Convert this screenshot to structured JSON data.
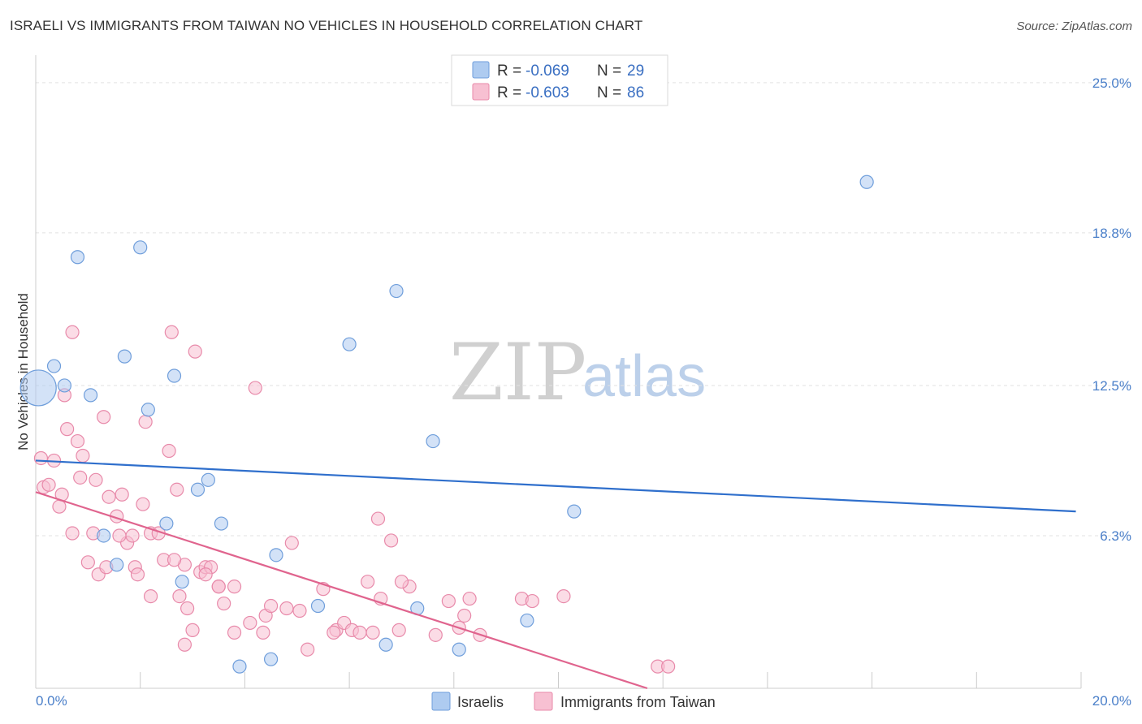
{
  "title": "ISRAELI VS IMMIGRANTS FROM TAIWAN NO VEHICLES IN HOUSEHOLD CORRELATION CHART",
  "source": "Source: ZipAtlas.com",
  "watermark": {
    "zip": "ZIP",
    "atlas": "atlas"
  },
  "legend_top": [
    {
      "r_label": "R = ",
      "r_value": "-0.069",
      "n_label": "N = ",
      "n_value": "29",
      "color": "#aecbf0",
      "stroke": "#6f9edb"
    },
    {
      "r_label": "R = ",
      "r_value": "-0.603",
      "n_label": "N = ",
      "n_value": "86",
      "color": "#f7c0d2",
      "stroke": "#e88aaa"
    }
  ],
  "chart_data": {
    "type": "scatter",
    "title": "ISRAELI VS IMMIGRANTS FROM TAIWAN NO VEHICLES IN HOUSEHOLD CORRELATION CHART",
    "xlabel": "",
    "ylabel": "No Vehicles in Household",
    "xlim": [
      0,
      20
    ],
    "ylim": [
      0,
      25.8
    ],
    "x_tick_labels": [
      "0.0%",
      "20.0%"
    ],
    "y_ticks": [
      6.3,
      12.5,
      18.8,
      25.0
    ],
    "y_tick_labels": [
      "6.3%",
      "12.5%",
      "18.8%",
      "25.0%"
    ],
    "grid": true,
    "series": [
      {
        "name": "Israelis",
        "color": "#aecbf0",
        "stroke": "#6f9edb",
        "line_color": "#2f6fcc",
        "trend": [
          [
            0,
            9.4
          ],
          [
            19.9,
            7.3
          ]
        ],
        "points": [
          [
            0.35,
            13.3
          ],
          [
            0.55,
            12.5
          ],
          [
            0.8,
            17.8
          ],
          [
            1.05,
            12.1
          ],
          [
            1.7,
            13.7
          ],
          [
            2.0,
            18.2
          ],
          [
            2.15,
            11.5
          ],
          [
            2.65,
            12.9
          ],
          [
            3.3,
            8.6
          ],
          [
            3.1,
            8.2
          ],
          [
            3.55,
            6.8
          ],
          [
            2.5,
            6.8
          ],
          [
            1.3,
            6.3
          ],
          [
            1.55,
            5.1
          ],
          [
            2.8,
            4.4
          ],
          [
            4.6,
            5.5
          ],
          [
            6.0,
            14.2
          ],
          [
            6.9,
            16.4
          ],
          [
            7.6,
            10.2
          ],
          [
            10.3,
            7.3
          ],
          [
            15.9,
            20.9
          ],
          [
            5.4,
            3.4
          ],
          [
            7.3,
            3.3
          ],
          [
            9.4,
            2.8
          ],
          [
            8.1,
            1.6
          ],
          [
            6.7,
            1.8
          ],
          [
            3.9,
            0.9
          ],
          [
            4.5,
            1.2
          ],
          [
            0.05,
            12.4
          ]
        ]
      },
      {
        "name": "Immigrants from Taiwan",
        "color": "#f7c0d2",
        "stroke": "#e88aaa",
        "line_color": "#e0648e",
        "trend": [
          [
            0,
            8.1
          ],
          [
            11.7,
            0
          ]
        ],
        "points": [
          [
            0.1,
            9.5
          ],
          [
            0.15,
            8.3
          ],
          [
            0.25,
            8.4
          ],
          [
            0.35,
            9.4
          ],
          [
            0.5,
            8.0
          ],
          [
            0.45,
            7.5
          ],
          [
            0.55,
            12.1
          ],
          [
            0.6,
            10.7
          ],
          [
            0.7,
            14.7
          ],
          [
            0.8,
            10.2
          ],
          [
            0.9,
            9.6
          ],
          [
            0.85,
            8.7
          ],
          [
            1.15,
            8.6
          ],
          [
            1.3,
            11.2
          ],
          [
            1.4,
            7.9
          ],
          [
            1.55,
            7.1
          ],
          [
            1.65,
            8.0
          ],
          [
            1.75,
            6.0
          ],
          [
            1.85,
            6.3
          ],
          [
            1.9,
            5.0
          ],
          [
            2.05,
            7.6
          ],
          [
            2.1,
            11.0
          ],
          [
            2.2,
            6.4
          ],
          [
            2.35,
            6.4
          ],
          [
            2.55,
            9.8
          ],
          [
            2.6,
            14.7
          ],
          [
            2.7,
            8.2
          ],
          [
            2.85,
            5.1
          ],
          [
            3.05,
            13.9
          ],
          [
            3.15,
            4.8
          ],
          [
            3.25,
            5.0
          ],
          [
            3.35,
            5.0
          ],
          [
            3.5,
            4.2
          ],
          [
            3.6,
            3.5
          ],
          [
            3.8,
            2.3
          ],
          [
            4.2,
            12.4
          ],
          [
            4.4,
            3.0
          ],
          [
            4.5,
            3.4
          ],
          [
            4.8,
            3.3
          ],
          [
            4.9,
            6.0
          ],
          [
            5.05,
            3.2
          ],
          [
            5.2,
            1.6
          ],
          [
            5.5,
            4.1
          ],
          [
            5.75,
            2.4
          ],
          [
            5.9,
            2.7
          ],
          [
            6.05,
            2.4
          ],
          [
            6.2,
            2.3
          ],
          [
            6.35,
            4.4
          ],
          [
            6.55,
            7.0
          ],
          [
            6.6,
            3.7
          ],
          [
            6.8,
            6.1
          ],
          [
            6.95,
            2.4
          ],
          [
            7.15,
            4.2
          ],
          [
            7.65,
            2.2
          ],
          [
            7.9,
            3.6
          ],
          [
            8.1,
            2.5
          ],
          [
            8.3,
            3.7
          ],
          [
            8.5,
            2.2
          ],
          [
            9.3,
            3.7
          ],
          [
            9.5,
            3.6
          ],
          [
            10.1,
            3.8
          ],
          [
            11.9,
            0.9
          ],
          [
            12.1,
            0.9
          ],
          [
            0.7,
            6.4
          ],
          [
            1.0,
            5.2
          ],
          [
            1.2,
            4.7
          ],
          [
            1.35,
            5.0
          ],
          [
            1.6,
            6.3
          ],
          [
            1.95,
            4.7
          ],
          [
            2.2,
            3.8
          ],
          [
            2.45,
            5.3
          ],
          [
            2.65,
            5.3
          ],
          [
            2.75,
            3.8
          ],
          [
            2.9,
            3.3
          ],
          [
            3.0,
            2.4
          ],
          [
            3.25,
            4.7
          ],
          [
            3.5,
            4.2
          ],
          [
            3.8,
            4.2
          ],
          [
            4.1,
            2.7
          ],
          [
            4.35,
            2.3
          ],
          [
            5.7,
            2.3
          ],
          [
            6.45,
            2.3
          ],
          [
            7.0,
            4.4
          ],
          [
            8.2,
            3.0
          ],
          [
            2.85,
            1.8
          ],
          [
            1.1,
            6.4
          ]
        ]
      }
    ]
  },
  "legend_bottom": [
    {
      "label": "Israelis",
      "color": "#aecbf0",
      "stroke": "#6f9edb"
    },
    {
      "label": "Immigrants from Taiwan",
      "color": "#f7c0d2",
      "stroke": "#e88aaa"
    }
  ]
}
